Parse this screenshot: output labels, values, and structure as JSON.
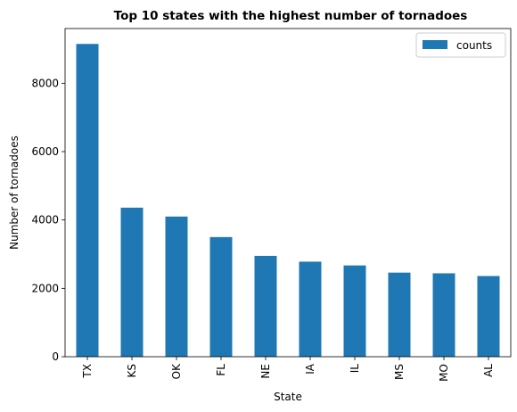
{
  "chart_data": {
    "type": "bar",
    "title": "Top 10 states with the highest number of tornadoes",
    "xlabel": "State",
    "ylabel": "Number of tornadoes",
    "categories": [
      "TX",
      "KS",
      "OK",
      "FL",
      "NE",
      "IA",
      "IL",
      "MS",
      "MO",
      "AL"
    ],
    "series": [
      {
        "name": "counts",
        "values": [
          9150,
          4360,
          4100,
          3500,
          2950,
          2780,
          2670,
          2460,
          2440,
          2360
        ],
        "color": "#1f77b4"
      }
    ],
    "yticks": [
      0,
      2000,
      4000,
      6000,
      8000
    ],
    "ylim": [
      0,
      9600
    ],
    "legend": "top-right",
    "grid": false
  }
}
